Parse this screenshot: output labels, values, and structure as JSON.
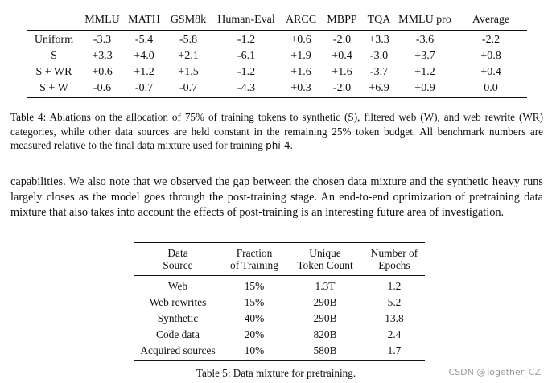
{
  "table4": {
    "headers": [
      "",
      "MMLU",
      "MATH",
      "GSM8k",
      "Human-Eval",
      "ARCC",
      "MBPP",
      "TQA",
      "MMLU pro",
      "Average"
    ],
    "rows": [
      [
        "Uniform",
        "-3.3",
        "-5.4",
        "-5.8",
        "-1.2",
        "+0.6",
        "-2.0",
        "+3.3",
        "-3.6",
        "-2.2"
      ],
      [
        "S",
        "+3.3",
        "+4.0",
        "+2.1",
        "-6.1",
        "+1.9",
        "+0.4",
        "-3.0",
        "+3.7",
        "+0.8"
      ],
      [
        "S + WR",
        "+0.6",
        "+1.2",
        "+1.5",
        "-1.2",
        "+1.6",
        "+1.6",
        "-3.7",
        "+1.2",
        "+0.4"
      ],
      [
        "S + W",
        "-0.6",
        "-0.7",
        "-0.7",
        "-4.3",
        "+0.3",
        "-2.0",
        "+6.9",
        "+0.9",
        "0.0"
      ]
    ],
    "caption_main": "Table 4: Ablations on the allocation of 75% of training tokens to synthetic (S), filtered web (W), and web rewrite (WR) categories, while other data sources are held constant in the remaining 25% token budget. All benchmark numbers are measured relative to the final data mixture used for training ",
    "caption_model": "phi-4",
    "caption_end": "."
  },
  "paragraph": "capabilities. We also note that we observed the gap between the chosen data mixture and the synthetic heavy runs largely closes as the model goes through the post-training stage. An end-to-end optimization of pretraining data mixture that also takes into account the effects of post-training is an interesting future area of investigation.",
  "table5": {
    "headers": [
      [
        "Data",
        "Source"
      ],
      [
        "Fraction",
        "of Training"
      ],
      [
        "Unique",
        "Token Count"
      ],
      [
        "Number of",
        "Epochs"
      ]
    ],
    "rows": [
      [
        "Web",
        "15%",
        "1.3T",
        "1.2"
      ],
      [
        "Web rewrites",
        "15%",
        "290B",
        "5.2"
      ],
      [
        "Synthetic",
        "40%",
        "290B",
        "13.8"
      ],
      [
        "Code data",
        "20%",
        "820B",
        "2.4"
      ],
      [
        "Acquired sources",
        "10%",
        "580B",
        "1.7"
      ]
    ],
    "caption": "Table 5: Data mixture for pretraining."
  },
  "watermark": "CSDN @Together_CZ"
}
